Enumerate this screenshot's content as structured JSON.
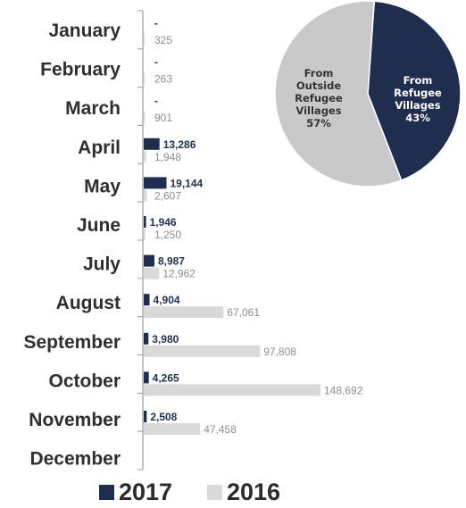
{
  "chart_data": [
    {
      "type": "bar",
      "orientation": "horizontal",
      "categories": [
        "January",
        "February",
        "March",
        "April",
        "May",
        "June",
        "July",
        "August",
        "September",
        "October",
        "November",
        "December"
      ],
      "series": [
        {
          "name": "2017",
          "color": "#1f2d4e",
          "values": [
            null,
            null,
            null,
            13286,
            19144,
            1946,
            8987,
            4904,
            3980,
            4265,
            2508,
            null
          ],
          "labels": [
            "-",
            "-",
            "-",
            "13,286",
            "19,144",
            "1,946",
            "8,987",
            "4,904",
            "3,980",
            "4,265",
            "2,508",
            ""
          ]
        },
        {
          "name": "2016",
          "color": "#d9d9d9",
          "values": [
            325,
            263,
            901,
            1948,
            2607,
            1250,
            12962,
            67061,
            97808,
            148692,
            47458,
            null
          ],
          "labels": [
            "325",
            "263",
            "901",
            "1,948",
            "2,607",
            "1,250",
            "12,962",
            "67,061",
            "97,808",
            "148,692",
            "47,458",
            ""
          ]
        }
      ],
      "legend_position": "bottom"
    },
    {
      "type": "pie",
      "slices": [
        {
          "lines": [
            "From",
            "Refugee",
            "Villages",
            "43%"
          ],
          "value": 43,
          "color": "#1f2d4e",
          "text_color": "#ffffff"
        },
        {
          "lines": [
            "From",
            "Outside",
            "Refugee",
            "Villages",
            "57%"
          ],
          "value": 57,
          "color": "#c9c9c9",
          "text_color": "#333333"
        }
      ]
    }
  ]
}
